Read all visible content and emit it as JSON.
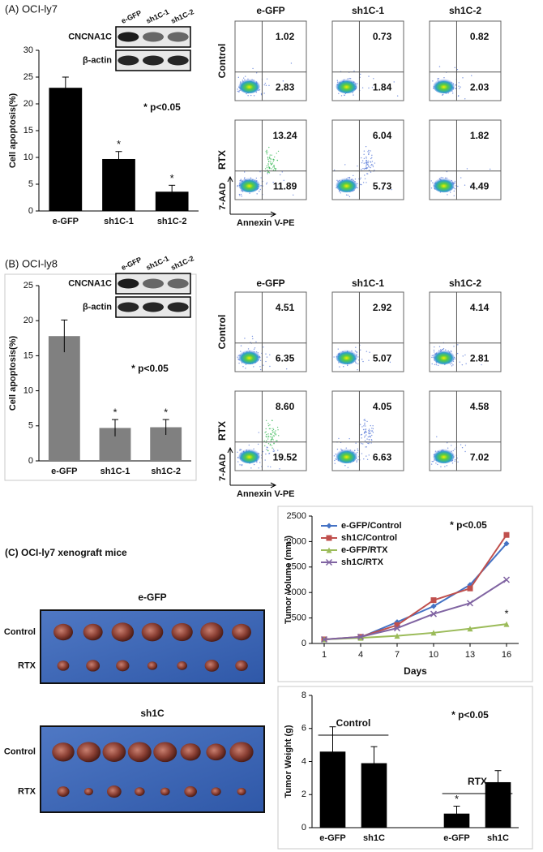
{
  "panels": [
    {
      "label": "(A) OCI-ly7"
    },
    {
      "label": "(B) OCI-ly8"
    }
  ],
  "blots": [
    {
      "lanes": [
        "e-GFP",
        "sh1C-1",
        "sh1C-2"
      ],
      "rows": [
        "CNCNA1C",
        "β-actin"
      ]
    },
    {
      "lanes": [
        "e-GFP",
        "sh1C-1",
        "sh1C-2"
      ],
      "rows": [
        "CNCNA1C",
        "β-actin"
      ]
    }
  ],
  "flow_panels": [
    {
      "columns": [
        "e-GFP",
        "sh1C-1",
        "sh1C-2"
      ],
      "y_label": "7-AAD",
      "x_label": "Annexin V-PE",
      "rows": [
        {
          "label": "Control",
          "upper_right": [
            "1.02",
            "0.73",
            "0.82"
          ],
          "lower_right": [
            "2.83",
            "1.84",
            "2.03"
          ]
        },
        {
          "label": "RTX",
          "upper_right": [
            "13.24",
            "6.04",
            "1.82"
          ],
          "lower_right": [
            "11.89",
            "5.73",
            "4.49"
          ]
        }
      ]
    },
    {
      "columns": [
        "e-GFP",
        "sh1C-1",
        "sh1C-2"
      ],
      "y_label": "7-AAD",
      "x_label": "Annexin V-PE",
      "rows": [
        {
          "label": "Control",
          "upper_right": [
            "4.51",
            "2.92",
            "4.14"
          ],
          "lower_right": [
            "6.35",
            "5.07",
            "2.81"
          ]
        },
        {
          "label": "RTX",
          "upper_right": [
            "8.60",
            "4.05",
            "4.58"
          ],
          "lower_right": [
            "19.52",
            "6.63",
            "7.02"
          ]
        }
      ]
    }
  ],
  "xenograft": {
    "title": "(C) OCI-ly7 xenograft mice",
    "groups": [
      {
        "name": "e-GFP",
        "rows": [
          "Control",
          "RTX"
        ]
      },
      {
        "name": "sh1C",
        "rows": [
          "Control",
          "RTX"
        ]
      }
    ]
  },
  "chart_data": [
    {
      "type": "bar",
      "y_label": "Cell apoptosis(%)",
      "annotation": "* p<0.05",
      "color": "#000000",
      "categories": [
        "e-GFP",
        "sh1C-1",
        "sh1C-2"
      ],
      "values": [
        23,
        9.7,
        3.6
      ],
      "errors": [
        2,
        1.4,
        1.2
      ],
      "significance": [
        null,
        "*",
        "*"
      ],
      "ylim": [
        0,
        30
      ],
      "yticks": [
        0,
        5,
        10,
        15,
        20,
        25,
        30
      ]
    },
    {
      "type": "bar",
      "y_label": "Cell apoptosis(%)",
      "annotation": "* p<0.05",
      "color": "#808080",
      "categories": [
        "e-GFP",
        "sh1C-1",
        "sh1C-2"
      ],
      "values": [
        17.8,
        4.7,
        4.8
      ],
      "errors": [
        2.3,
        1.2,
        1.1
      ],
      "significance": [
        null,
        "*",
        "*"
      ],
      "ylim": [
        0,
        25
      ],
      "yticks": [
        0,
        5,
        10,
        15,
        20,
        25
      ]
    },
    {
      "type": "line",
      "y_label": "Tumor Volume (mm³)",
      "x_label": "Days",
      "annotation": "* p<0.05",
      "x": [
        1,
        4,
        7,
        10,
        13,
        16
      ],
      "xlim": [
        0,
        17
      ],
      "xticks": [
        1,
        4,
        7,
        10,
        13,
        16
      ],
      "ylim": [
        0,
        2500
      ],
      "yticks": [
        0,
        500,
        1000,
        1500,
        2000,
        2500
      ],
      "series": [
        {
          "name": "e-GFP/Control",
          "color": "#4472c4",
          "marker": "diamond",
          "values": [
            80,
            120,
            420,
            730,
            1150,
            1960
          ]
        },
        {
          "name": "sh1C/Control",
          "color": "#c0504d",
          "marker": "square",
          "values": [
            80,
            130,
            360,
            850,
            1080,
            2130
          ]
        },
        {
          "name": "e-GFP/RTX",
          "color": "#9bbb59",
          "marker": "triangle",
          "values": [
            80,
            110,
            150,
            210,
            290,
            380
          ],
          "significance": [
            null,
            null,
            null,
            null,
            null,
            "*"
          ]
        },
        {
          "name": "sh1C/RTX",
          "color": "#8064a2",
          "marker": "x",
          "values": [
            80,
            130,
            300,
            580,
            790,
            1250
          ]
        }
      ]
    },
    {
      "type": "bar",
      "y_label": "Tumor Weight (g)",
      "annotation": "* p<0.05",
      "color": "#000000",
      "categories": [
        "e-GFP",
        "sh1C",
        "e-GFP",
        "sh1C"
      ],
      "values": [
        4.6,
        3.9,
        0.85,
        2.75
      ],
      "errors": [
        1.5,
        1.0,
        0.45,
        0.7
      ],
      "significance": [
        null,
        null,
        "*",
        null
      ],
      "group_labels": [
        "Control",
        "RTX"
      ],
      "ylim": [
        0,
        8
      ],
      "yticks": [
        0,
        2,
        4,
        6,
        8
      ]
    }
  ]
}
